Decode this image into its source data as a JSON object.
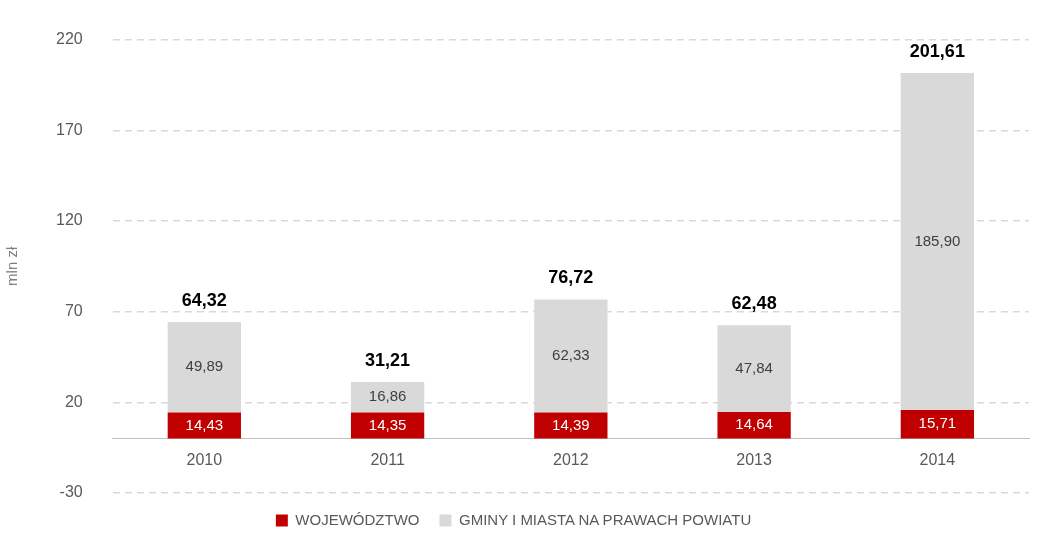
{
  "chart_data": {
    "type": "bar",
    "stacked": true,
    "ylabel": "mln zł",
    "categories": [
      "2010",
      "2011",
      "2012",
      "2013",
      "2014"
    ],
    "series": [
      {
        "name": "WOJEWÓDZTWO",
        "color": "#c00000",
        "values": [
          14.43,
          14.35,
          14.39,
          14.64,
          15.71
        ],
        "value_labels": [
          "14,43",
          "14,35",
          "14,39",
          "14,64",
          "15,71"
        ]
      },
      {
        "name": "GMINY I MIASTA NA PRAWACH POWIATU",
        "color": "#d9d9d9",
        "values": [
          49.89,
          16.86,
          62.33,
          47.84,
          185.9
        ],
        "value_labels": [
          "49,89",
          "16,86",
          "62,33",
          "47,84",
          "185,90"
        ]
      }
    ],
    "totals": [
      "64,32",
      "31,21",
      "76,72",
      "62,48",
      "201,61"
    ],
    "ylim": [
      -30,
      220
    ],
    "yticks": [
      -30,
      20,
      70,
      120,
      170,
      220
    ],
    "grid": "y",
    "legend": "bottom"
  }
}
